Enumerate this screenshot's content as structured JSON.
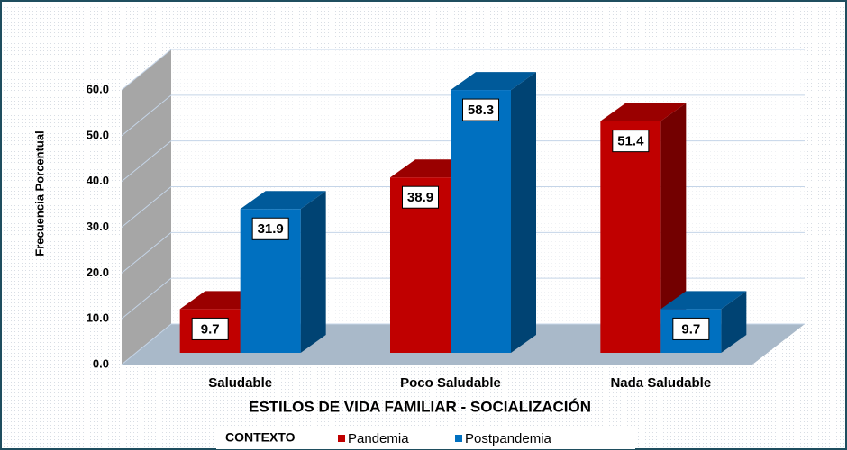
{
  "chart_data": {
    "type": "bar3d",
    "x_label": "ESTILOS DE VIDA FAMILIAR - SOCIALIZACIÓN",
    "y_label": "Frecuencia Porcentual",
    "legend_title": "CONTEXTO",
    "categories": [
      "Saludable",
      "Poco Saludable",
      "Nada Saludable"
    ],
    "series": [
      {
        "name": "Pandemia",
        "color": "#c00000",
        "values": [
          9.7,
          38.9,
          51.4
        ]
      },
      {
        "name": "Postpandemia",
        "color": "#0070c0",
        "values": [
          31.9,
          58.3,
          9.7
        ]
      }
    ],
    "ylim": [
      0,
      60
    ],
    "yticks": [
      {
        "value": 0,
        "label": "0.0"
      },
      {
        "value": 10,
        "label": "10.0"
      },
      {
        "value": 20,
        "label": "20.0"
      },
      {
        "value": 30,
        "label": "30.0"
      },
      {
        "value": 40,
        "label": "40.0"
      },
      {
        "value": 50,
        "label": "50.0"
      },
      {
        "value": 60,
        "label": "60.0"
      }
    ],
    "grid": true
  }
}
